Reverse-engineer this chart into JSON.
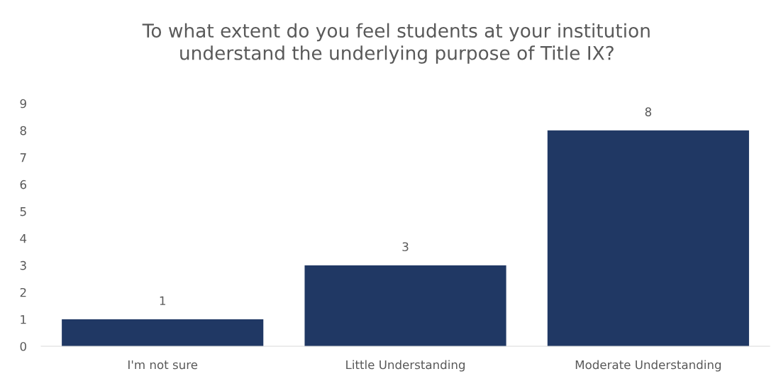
{
  "chart_data": {
    "type": "bar",
    "title": "To what extent do you feel students at your institution\nunderstand the underlying purpose of Title IX?",
    "categories": [
      "I'm not sure",
      "Little Understanding",
      "Moderate Understanding"
    ],
    "values": [
      1,
      3,
      8
    ],
    "color": "#203864",
    "ylim": [
      0,
      9
    ],
    "yticks": [
      0,
      1,
      2,
      3,
      4,
      5,
      6,
      7,
      8,
      9
    ],
    "grid": false,
    "data_labels": true
  }
}
